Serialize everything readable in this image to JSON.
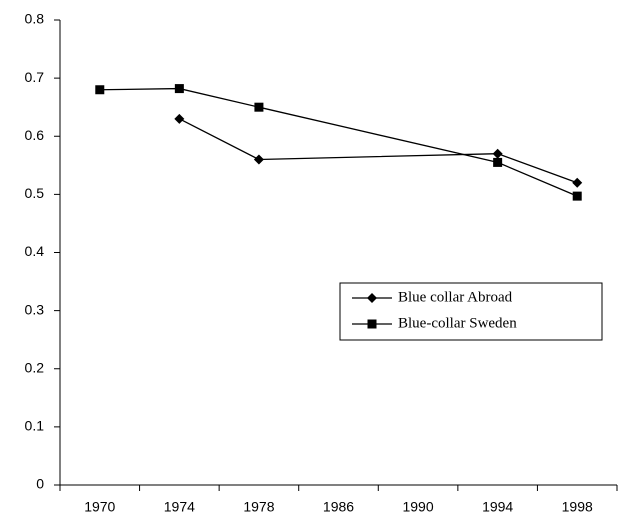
{
  "chart_data": {
    "type": "line",
    "categories": [
      "1970",
      "1974",
      "1978",
      "1986",
      "1990",
      "1994",
      "1998"
    ],
    "series": [
      {
        "name": "Blue collar Abroad",
        "color": "#000000",
        "marker": "diamond",
        "values": [
          null,
          0.63,
          0.56,
          null,
          null,
          0.57,
          0.52
        ]
      },
      {
        "name": "Blue-collar Sweden",
        "color": "#000000",
        "marker": "square",
        "values": [
          0.68,
          0.682,
          0.65,
          null,
          null,
          0.555,
          0.497
        ]
      }
    ],
    "connect_gaps": true,
    "ylim": [
      0,
      0.8
    ],
    "yticks": [
      0,
      0.1,
      0.2,
      0.3,
      0.4,
      0.5,
      0.6,
      0.7,
      0.8
    ],
    "grid": false,
    "legend": "right"
  }
}
